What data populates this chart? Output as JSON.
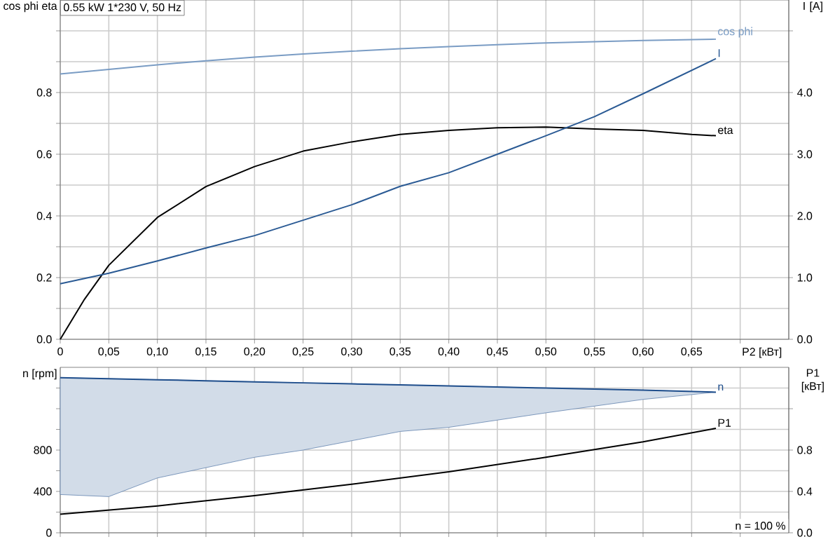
{
  "chart_data": [
    {
      "type": "line",
      "title": "0.55 kW   1*230 V, 50 Hz",
      "xlabel": "P2 [кВт]",
      "ylabel": "cos phi eta",
      "y2label": "I [A]",
      "xlim": [
        0,
        0.75
      ],
      "xticks": [
        {
          "value": 0,
          "label": "0"
        },
        {
          "value": 0.05,
          "label": "0,05"
        },
        {
          "value": 0.1,
          "label": "0,10"
        },
        {
          "value": 0.15,
          "label": "0,15"
        },
        {
          "value": 0.2,
          "label": "0,20"
        },
        {
          "value": 0.25,
          "label": "0,25"
        },
        {
          "value": 0.3,
          "label": "0,30"
        },
        {
          "value": 0.35,
          "label": "0,35"
        },
        {
          "value": 0.4,
          "label": "0,40"
        },
        {
          "value": 0.45,
          "label": "0,45"
        },
        {
          "value": 0.5,
          "label": "0,50"
        },
        {
          "value": 0.55,
          "label": "0,55"
        },
        {
          "value": 0.6,
          "label": "0,60"
        },
        {
          "value": 0.65,
          "label": "0,65"
        },
        {
          "value": 0.7,
          "label": null
        }
      ],
      "ylim": [
        0,
        1.1
      ],
      "yticks": [
        {
          "value": 0,
          "label": "0.0"
        },
        {
          "value": 0.1,
          "label": null
        },
        {
          "value": 0.2,
          "label": "0.2"
        },
        {
          "value": 0.3,
          "label": null
        },
        {
          "value": 0.4,
          "label": "0.4"
        },
        {
          "value": 0.5,
          "label": null
        },
        {
          "value": 0.6,
          "label": "0.6"
        },
        {
          "value": 0.7,
          "label": null
        },
        {
          "value": 0.8,
          "label": "0.8"
        },
        {
          "value": 0.9,
          "label": null
        },
        {
          "value": 1.0,
          "label": null
        }
      ],
      "y2lim": [
        0,
        5.5
      ],
      "y2ticks": [
        {
          "value": 0,
          "label": "0.0"
        },
        {
          "value": 1,
          "label": "1.0"
        },
        {
          "value": 2,
          "label": "2.0"
        },
        {
          "value": 3,
          "label": "3.0"
        },
        {
          "value": 4,
          "label": "4.0"
        },
        {
          "value": 5,
          "label": null
        }
      ],
      "grid": true,
      "series": [
        {
          "name": "cos phi",
          "color": "#7a9cc4",
          "x": [
            0,
            0.05,
            0.1,
            0.15,
            0.2,
            0.25,
            0.3,
            0.35,
            0.4,
            0.45,
            0.5,
            0.55,
            0.6,
            0.675
          ],
          "values": [
            0.86,
            0.875,
            0.89,
            0.903,
            0.915,
            0.925,
            0.934,
            0.942,
            0.949,
            0.955,
            0.961,
            0.965,
            0.969,
            0.973
          ]
        },
        {
          "name": "I",
          "color": "#2a5a94",
          "axis": "y2",
          "x": [
            0,
            0.05,
            0.1,
            0.15,
            0.2,
            0.25,
            0.3,
            0.35,
            0.4,
            0.45,
            0.5,
            0.55,
            0.6,
            0.675
          ],
          "values": [
            0.9,
            1.07,
            1.27,
            1.48,
            1.68,
            1.93,
            2.18,
            2.48,
            2.7,
            3.0,
            3.3,
            3.61,
            3.98,
            4.55
          ]
        },
        {
          "name": "eta",
          "color": "#000000",
          "x": [
            0,
            0.025,
            0.05,
            0.1,
            0.15,
            0.2,
            0.25,
            0.3,
            0.35,
            0.4,
            0.45,
            0.5,
            0.55,
            0.6,
            0.65,
            0.675
          ],
          "values": [
            0,
            0.13,
            0.24,
            0.395,
            0.495,
            0.56,
            0.61,
            0.64,
            0.664,
            0.677,
            0.686,
            0.688,
            0.682,
            0.677,
            0.664,
            0.66
          ]
        }
      ]
    },
    {
      "type": "line",
      "ylabel": "n [rpm]",
      "y2label": "P1 [кВт]",
      "xlim": [
        0,
        0.75
      ],
      "xticks": [
        0,
        0.05,
        0.1,
        0.15,
        0.2,
        0.25,
        0.3,
        0.35,
        0.4,
        0.45,
        0.5,
        0.55,
        0.6,
        0.65,
        0.7
      ],
      "tick_labels": "y",
      "ylim": [
        0,
        1600
      ],
      "yticks": [
        0,
        {
          "value": 200,
          "label": null
        },
        400,
        {
          "value": 600,
          "label": null
        },
        800,
        {
          "value": 1000,
          "label": null
        },
        {
          "value": 1200,
          "label": null
        },
        {
          "value": 1400,
          "label": null
        }
      ],
      "y2lim": [
        0,
        1.6
      ],
      "y2ticks": [
        {
          "value": 0,
          "label": "0.0"
        },
        {
          "value": 0.4,
          "label": "0.4"
        },
        {
          "value": 0.8,
          "label": "0.8"
        },
        {
          "value": 1.2,
          "label": null
        }
      ],
      "grid": true,
      "annotations": [
        "n = 100 %"
      ],
      "series": [
        {
          "name": "n",
          "color": "#1f4e8c",
          "x": [
            0,
            0.05,
            0.1,
            0.15,
            0.2,
            0.25,
            0.3,
            0.35,
            0.4,
            0.5,
            0.6,
            0.675
          ],
          "values": [
            1500,
            1490,
            1480,
            1470,
            1460,
            1450,
            1440,
            1430,
            1420,
            1400,
            1380,
            1360
          ],
          "lower": [
            370,
            350,
            530,
            630,
            730,
            800,
            890,
            980,
            1020,
            1160,
            1290,
            1360
          ],
          "upper": [
            1500,
            1490,
            1480,
            1470,
            1460,
            1450,
            1440,
            1430,
            1420,
            1400,
            1380,
            1360
          ]
        },
        {
          "name": "P1",
          "color": "#000000",
          "axis": "y2",
          "x": [
            0,
            0.1,
            0.2,
            0.3,
            0.4,
            0.5,
            0.6,
            0.675
          ],
          "values": [
            0.18,
            0.26,
            0.36,
            0.47,
            0.59,
            0.73,
            0.88,
            1.01
          ]
        }
      ]
    }
  ]
}
